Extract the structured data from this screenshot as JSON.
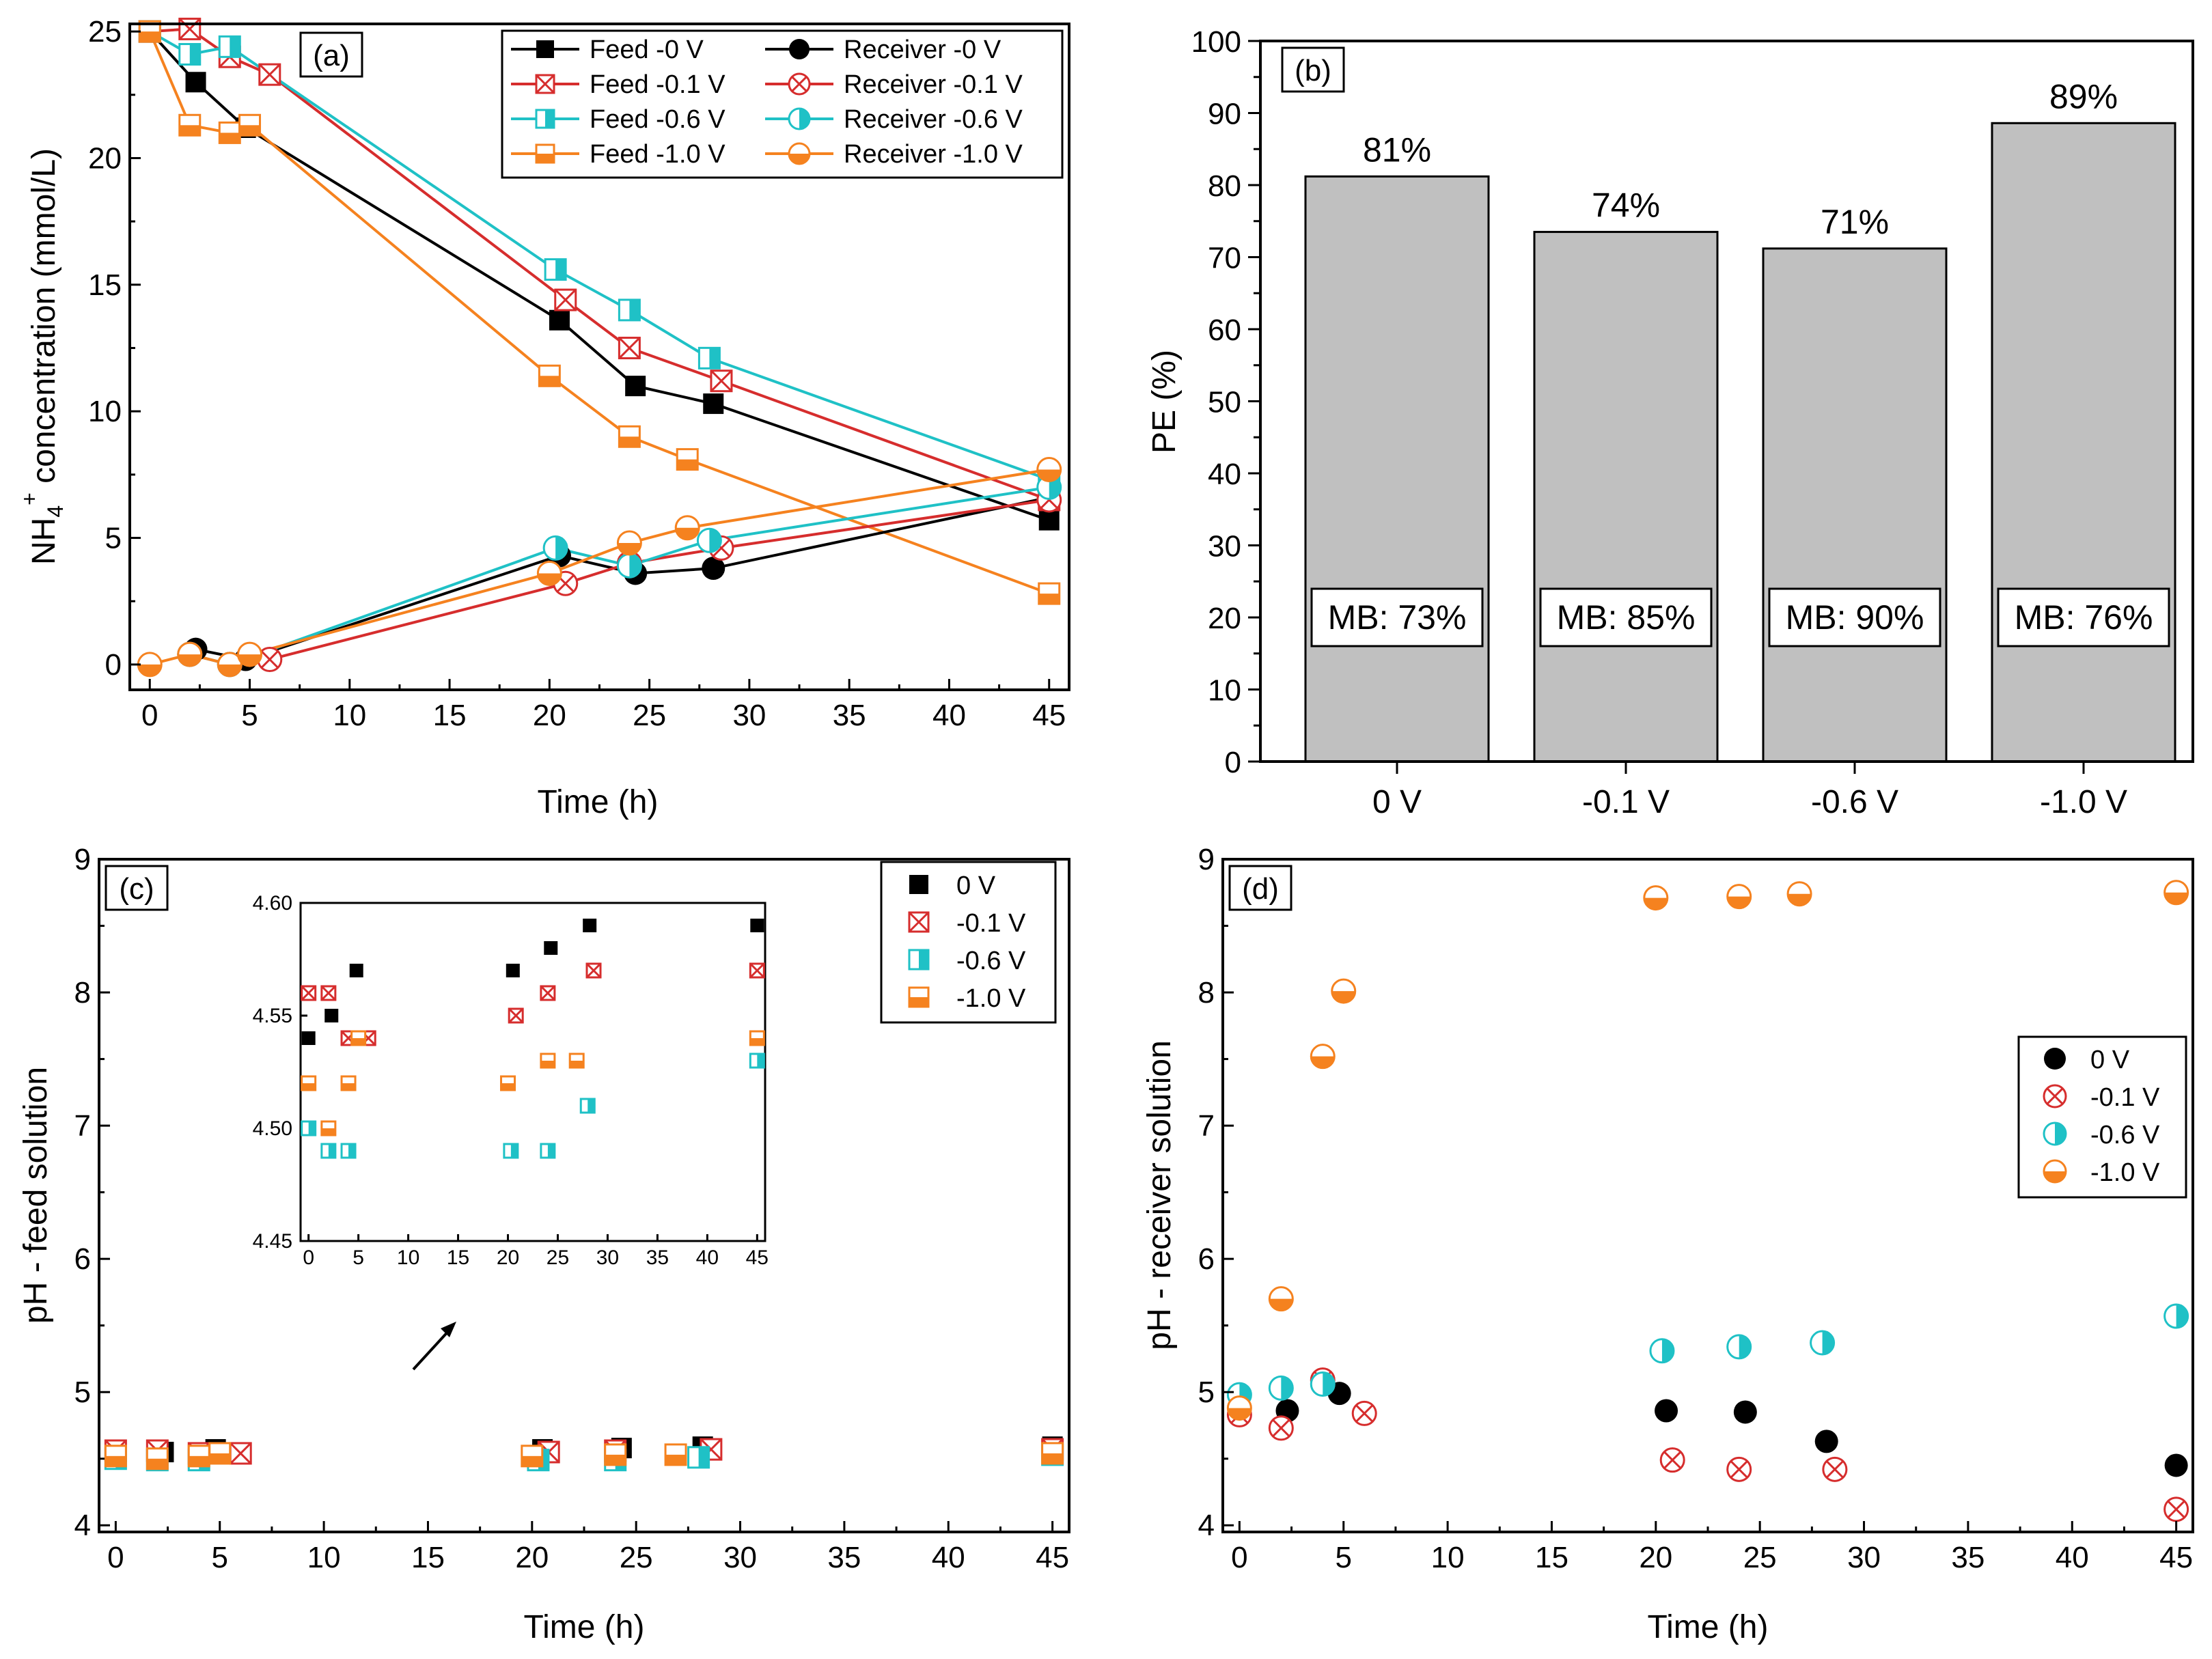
{
  "colors": {
    "zero": "#000000",
    "m01": "#d62d2d",
    "m06": "#1fc1c6",
    "m10": "#f5821f",
    "bar_fill": "#c0c0c0"
  },
  "panel_a": {
    "label": "(a)",
    "xlabel": "Time (h)",
    "ylabel_main": "NH",
    "ylabel_sub": "4",
    "ylabel_sup": "+",
    "ylabel_rest": " concentration (mmol/L)",
    "xticks": [
      "0",
      "5",
      "10",
      "15",
      "20",
      "25",
      "30",
      "35",
      "40",
      "45"
    ],
    "yticks": [
      "0",
      "5",
      "10",
      "15",
      "20",
      "25"
    ],
    "legend": [
      {
        "name": "Feed  -0 V",
        "key": "feed_0"
      },
      {
        "name": "Receiver  -0 V",
        "key": "rec_0"
      },
      {
        "name": "Feed  -0.1 V",
        "key": "feed_01"
      },
      {
        "name": "Receiver  -0.1 V",
        "key": "rec_01"
      },
      {
        "name": "Feed  -0.6 V",
        "key": "feed_06"
      },
      {
        "name": "Receiver  -0.6 V",
        "key": "rec_06"
      },
      {
        "name": "Feed  -1.0 V",
        "key": "feed_10"
      },
      {
        "name": "Receiver  -1.0 V",
        "key": "rec_10"
      }
    ]
  },
  "panel_b": {
    "label": "(b)",
    "ylabel": "PE (%)",
    "yticks": [
      "0",
      "10",
      "20",
      "30",
      "40",
      "50",
      "60",
      "70",
      "80",
      "90",
      "100"
    ],
    "bars": [
      {
        "category": "0 V",
        "value_label": "81%",
        "mb": "MB: 73%"
      },
      {
        "category": "-0.1 V",
        "value_label": "74%",
        "mb": "MB: 85%"
      },
      {
        "category": "-0.6 V",
        "value_label": "71%",
        "mb": "MB: 90%"
      },
      {
        "category": "-1.0 V",
        "value_label": "89%",
        "mb": "MB: 76%"
      }
    ]
  },
  "panel_c": {
    "label": "(c)",
    "xlabel": "Time (h)",
    "ylabel": "pH - feed solution",
    "xticks": [
      "0",
      "5",
      "10",
      "15",
      "20",
      "25",
      "30",
      "35",
      "40",
      "45"
    ],
    "yticks": [
      "4",
      "5",
      "6",
      "7",
      "8",
      "9"
    ],
    "inset_xticks": [
      "0",
      "5",
      "10",
      "15",
      "20",
      "25",
      "30",
      "35",
      "40",
      "45"
    ],
    "inset_yticks": [
      "4.45",
      "4.50",
      "4.55",
      "4.60"
    ],
    "legend": [
      "0 V",
      "-0.1 V",
      "-0.6 V",
      "-1.0 V"
    ]
  },
  "panel_d": {
    "label": "(d)",
    "xlabel": "Time (h)",
    "ylabel": "pH - receiver solution",
    "xticks": [
      "0",
      "5",
      "10",
      "15",
      "20",
      "25",
      "30",
      "35",
      "40",
      "45"
    ],
    "yticks": [
      "4",
      "5",
      "6",
      "7",
      "8",
      "9"
    ],
    "legend": [
      "0 V",
      "-0.1 V",
      "-0.6 V",
      "-1.0 V"
    ]
  },
  "chart_data": [
    {
      "panel": "a",
      "type": "line",
      "xlabel": "Time (h)",
      "ylabel": "NH4+ concentration (mmol/L)",
      "xlim": [
        -1,
        46
      ],
      "ylim": [
        -1,
        25.3
      ],
      "series": [
        {
          "name": "Feed  -0 V",
          "key": "feed_0",
          "x": [
            0,
            2.3,
            4.8,
            20.5,
            24.3,
            28.2,
            45
          ],
          "y": [
            25,
            23,
            21.2,
            13.6,
            11,
            10.3,
            5.7
          ]
        },
        {
          "name": "Feed  -0.1 V",
          "key": "feed_01",
          "x": [
            0,
            2,
            4,
            6,
            20.8,
            24,
            28.6,
            45
          ],
          "y": [
            25,
            25.1,
            24,
            23.3,
            14.4,
            12.5,
            11.2,
            6.5
          ]
        },
        {
          "name": "Feed  -0.6 V",
          "key": "feed_06",
          "x": [
            0,
            2,
            4,
            20.3,
            24,
            28,
            45
          ],
          "y": [
            25,
            24.1,
            24.4,
            15.6,
            14,
            12.1,
            7.3
          ]
        },
        {
          "name": "Feed  -1.0 V",
          "key": "feed_10",
          "x": [
            0,
            2,
            4,
            5,
            20,
            24,
            26.9,
            45
          ],
          "y": [
            25,
            21.3,
            21,
            21.3,
            11.4,
            9,
            8.1,
            2.8
          ]
        },
        {
          "name": "Receiver  -0 V",
          "key": "rec_0",
          "x": [
            2.3,
            4.8,
            20.5,
            24.3,
            28.2,
            45
          ],
          "y": [
            0.6,
            0.2,
            4.3,
            3.6,
            3.8,
            6.6
          ]
        },
        {
          "name": "Receiver  -0.1 V",
          "key": "rec_01",
          "x": [
            2,
            4,
            6,
            20.8,
            24,
            28.6,
            45
          ],
          "y": [
            0.4,
            0,
            0.2,
            3.2,
            4,
            4.6,
            6.5
          ]
        },
        {
          "name": "Receiver  -0.6 V",
          "key": "rec_06",
          "x": [
            2,
            4,
            20.3,
            24,
            28,
            45
          ],
          "y": [
            0.4,
            0,
            4.6,
            3.9,
            4.9,
            7
          ]
        },
        {
          "name": "Receiver  -1.0 V",
          "key": "rec_10",
          "x": [
            0,
            2,
            4,
            5,
            20,
            24,
            26.9,
            45
          ],
          "y": [
            0,
            0.4,
            0,
            0.4,
            3.6,
            4.8,
            5.4,
            7.7
          ]
        }
      ]
    },
    {
      "panel": "b",
      "type": "bar",
      "title": "",
      "ylabel": "PE (%)",
      "ylim": [
        0,
        100
      ],
      "categories": [
        "0 V",
        "-0.1 V",
        "-0.6 V",
        "-1.0 V"
      ],
      "values": [
        81.2,
        73.5,
        71.2,
        88.6
      ],
      "annotations": [
        "MB: 73%",
        "MB: 85%",
        "MB: 90%",
        "MB: 76%"
      ]
    },
    {
      "panel": "c",
      "type": "scatter",
      "xlabel": "Time (h)",
      "ylabel": "pH - feed solution",
      "xlim": [
        -0.8,
        45.8
      ],
      "ylim": [
        3.95,
        9
      ],
      "series": [
        {
          "name": "0 V",
          "key": "p0",
          "x": [
            0,
            2.3,
            4.8,
            20.5,
            24.3,
            28.2,
            45
          ],
          "y": [
            4.54,
            4.55,
            4.57,
            4.57,
            4.58,
            4.59,
            4.59
          ]
        },
        {
          "name": "-0.1 V",
          "key": "p01",
          "x": [
            0,
            2,
            4,
            6,
            20.8,
            24,
            28.6,
            45
          ],
          "y": [
            4.56,
            4.56,
            4.54,
            4.54,
            4.55,
            4.56,
            4.57,
            4.57
          ]
        },
        {
          "name": "-0.6 V",
          "key": "p06",
          "x": [
            0,
            2,
            4,
            20.3,
            24,
            28,
            45
          ],
          "y": [
            4.5,
            4.49,
            4.49,
            4.49,
            4.49,
            4.51,
            4.53
          ]
        },
        {
          "name": "-1.0 V",
          "key": "p10",
          "x": [
            0,
            2,
            4,
            5,
            20,
            24,
            26.9,
            45
          ],
          "y": [
            4.52,
            4.5,
            4.52,
            4.54,
            4.52,
            4.53,
            4.53,
            4.54
          ]
        }
      ],
      "inset": {
        "xlim": [
          -0.8,
          45.8
        ],
        "ylim": [
          4.45,
          4.6
        ]
      }
    },
    {
      "panel": "d",
      "type": "scatter",
      "xlabel": "Time (h)",
      "ylabel": "pH - receiver solution",
      "xlim": [
        -0.8,
        45.8
      ],
      "ylim": [
        3.95,
        9
      ],
      "series": [
        {
          "name": "0 V",
          "key": "p0",
          "x": [
            2.3,
            4.8,
            20.5,
            24.3,
            28.2,
            45
          ],
          "y": [
            4.86,
            4.99,
            4.86,
            4.85,
            4.63,
            4.45
          ]
        },
        {
          "name": "-0.1 V",
          "key": "p01",
          "x": [
            0,
            2,
            4,
            6,
            20.8,
            24,
            28.6,
            45
          ],
          "y": [
            4.83,
            4.73,
            5.09,
            4.84,
            4.49,
            4.42,
            4.42,
            4.12
          ]
        },
        {
          "name": "-0.6 V",
          "key": "p06",
          "x": [
            0,
            2,
            4,
            20.3,
            24,
            28,
            45
          ],
          "y": [
            4.98,
            5.03,
            5.06,
            5.31,
            5.34,
            5.37,
            5.57
          ]
        },
        {
          "name": "-1.0 V",
          "key": "p10",
          "x": [
            0,
            2,
            4,
            5,
            20,
            24,
            26.9,
            45
          ],
          "y": [
            4.88,
            5.7,
            7.52,
            8.01,
            8.71,
            8.72,
            8.74,
            8.75
          ]
        }
      ]
    }
  ]
}
